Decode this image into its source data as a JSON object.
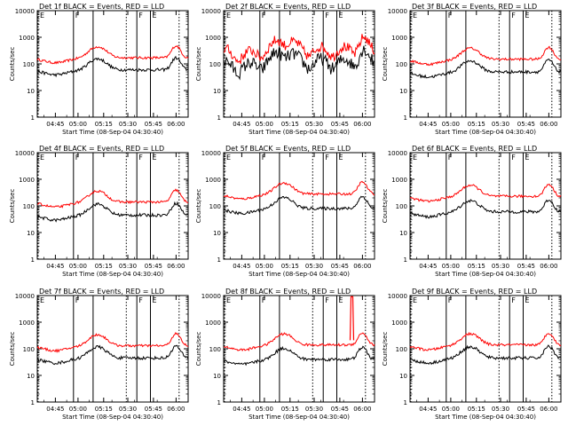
{
  "chart_data": {
    "type": "line",
    "x_tick_labels": [
      "04:45",
      "05:00",
      "05:15",
      "05:30",
      "05:45",
      "06:00"
    ],
    "y_tick_labels": [
      "1",
      "10",
      "100",
      "1000",
      "10000"
    ],
    "y_scale": "log",
    "ylim": [
      1,
      10000
    ],
    "ylabel": "Counts/sec",
    "xlabel": "Start Time (08-Sep-04 04:30:40)",
    "legend_text": "BLACK = Events, RED = LLD",
    "series_colors": {
      "events": "#000000",
      "lld": "#ff0000"
    },
    "marker_labels": {
      "E": "E",
      "F": "F"
    },
    "panels": [
      {
        "title": "Det 1f BLACK = Events, RED = LLD",
        "events_level": 60,
        "lld_level": 170,
        "noise": "low",
        "spike": false
      },
      {
        "title": "Det 2f BLACK = Events, RED = LLD",
        "events_level": 110,
        "lld_level": 320,
        "noise": "high",
        "spike": false
      },
      {
        "title": "Det 3f BLACK = Events, RED = LLD",
        "events_level": 50,
        "lld_level": 150,
        "noise": "low",
        "spike": false
      },
      {
        "title": "Det 4f BLACK = Events, RED = LLD",
        "events_level": 45,
        "lld_level": 140,
        "noise": "low",
        "spike": false
      },
      {
        "title": "Det 5f BLACK = Events, RED = LLD",
        "events_level": 80,
        "lld_level": 280,
        "noise": "low",
        "spike": false
      },
      {
        "title": "Det 6f BLACK = Events, RED = LLD",
        "events_level": 60,
        "lld_level": 230,
        "noise": "low",
        "spike": false
      },
      {
        "title": "Det 7f BLACK = Events, RED = LLD",
        "events_level": 45,
        "lld_level": 130,
        "noise": "low",
        "spike": false
      },
      {
        "title": "Det 8f BLACK = Events, RED = LLD",
        "events_level": 40,
        "lld_level": 140,
        "noise": "low",
        "spike": true
      },
      {
        "title": "Det 9f BLACK = Events, RED = LLD",
        "events_level": 45,
        "lld_level": 140,
        "noise": "low",
        "spike": false
      }
    ]
  }
}
